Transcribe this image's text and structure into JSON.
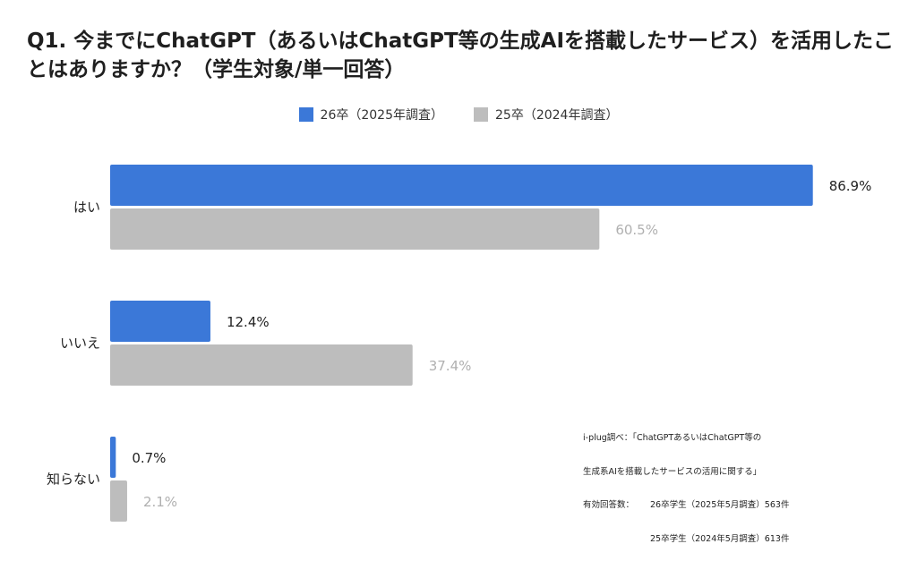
{
  "chart_data": {
    "type": "bar",
    "orientation": "horizontal",
    "title": "Q1. 今までにChatGPT（あるいはChatGPT等の生成AIを搭載したサービス）を活用したことはありますか？（学生対象/単一回答）",
    "categories": [
      "はい",
      "いいえ",
      "知らない"
    ],
    "series": [
      {
        "name": "26卒（2025年調査）",
        "color": "#3b78d8",
        "values": [
          86.9,
          12.4,
          0.7
        ],
        "labels": [
          "86.9%",
          "12.4%",
          "0.7%"
        ]
      },
      {
        "name": "25卒（2024年調査）",
        "color": "#bdbdbd",
        "values": [
          60.5,
          37.4,
          2.1
        ],
        "labels": [
          "60.5%",
          "37.4%",
          "2.1%"
        ]
      }
    ],
    "xlim": [
      0,
      90
    ],
    "grid": false,
    "legend_position": "top-center",
    "xlabel": "",
    "ylabel": ""
  },
  "note": {
    "line1": "i-plug調べ：「ChatGPTあるいはChatGPT等の",
    "line2": "生成系AIを搭載したサービスの活用に関する」",
    "count_label": "有効回答数：",
    "count_26": "26卒学生（2025年5月調査）563件",
    "count_25": "25卒学生（2024年5月調査）613件"
  }
}
